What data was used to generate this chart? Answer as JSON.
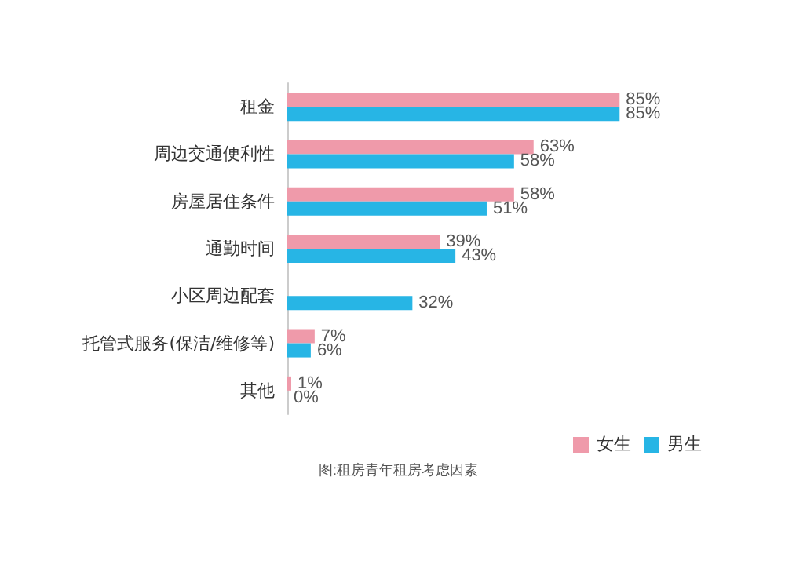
{
  "chart_data": {
    "type": "bar",
    "orientation": "horizontal",
    "categories": [
      "租金",
      "周边交通便利性",
      "房屋居住条件",
      "通勤时间",
      "小区周边配套",
      "托管式服务(保洁/维修等)",
      "其他"
    ],
    "series": [
      {
        "name": "女生",
        "color": "#ef9aaa",
        "values": [
          85,
          63,
          58,
          39,
          null,
          7,
          1
        ],
        "value_labels": [
          "85%",
          "63%",
          "58%",
          "39%",
          null,
          "7%",
          "1%"
        ]
      },
      {
        "name": "男生",
        "color": "#27b5e5",
        "values": [
          85,
          58,
          51,
          43,
          32,
          6,
          0
        ],
        "value_labels": [
          "85%",
          "58%",
          "51%",
          "43%",
          "32%",
          "6%",
          "0%"
        ]
      }
    ],
    "legend": "bottom right",
    "grid": false,
    "annotations": [
      "图:租房青年租房考虑因素"
    ]
  }
}
